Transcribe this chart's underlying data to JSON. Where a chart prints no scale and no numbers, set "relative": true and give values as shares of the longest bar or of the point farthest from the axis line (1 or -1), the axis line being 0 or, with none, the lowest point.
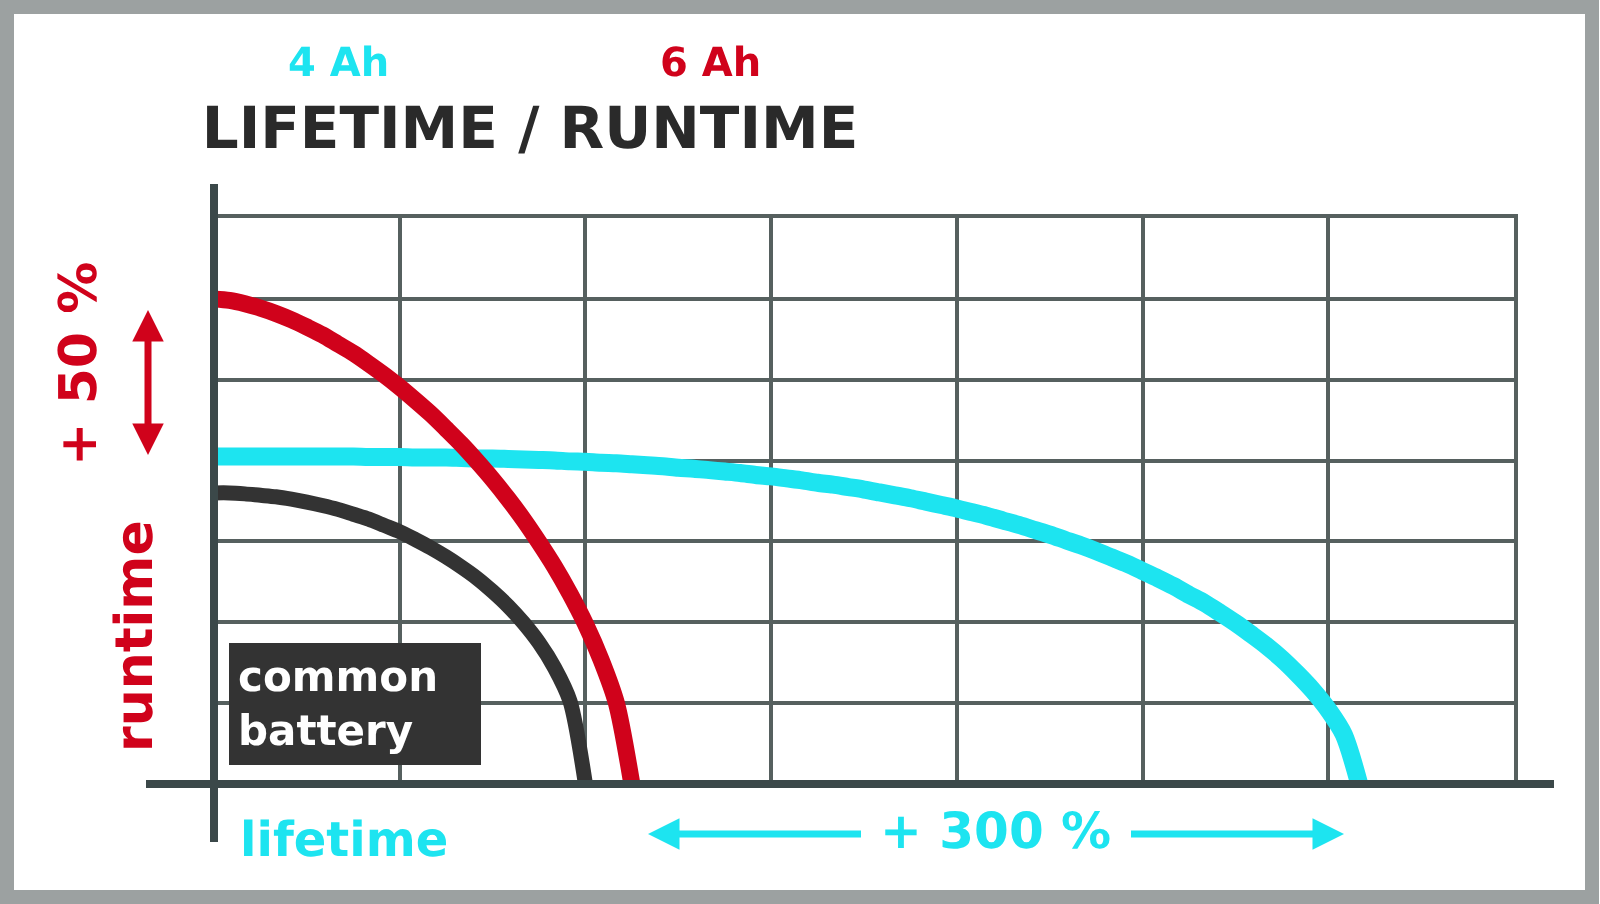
{
  "chart_data": {
    "type": "line",
    "title": "LIFETIME / RUNTIME",
    "xlabel": "lifetime",
    "ylabel": "runtime",
    "annotations": [
      "+ 50 %",
      "+ 300 %"
    ],
    "relative": true,
    "grid": true,
    "legend": "top left",
    "categories": [
      null,
      null,
      null,
      null,
      null,
      null,
      null,
      null,
      null,
      null,
      null,
      null,
      null,
      null,
      null,
      null,
      null,
      null,
      null,
      null,
      null,
      null,
      null,
      null,
      null,
      null,
      null,
      null,
      null,
      null,
      null,
      null,
      null,
      null,
      null,
      null,
      null,
      null,
      null,
      null,
      null,
      null,
      null,
      null,
      null,
      null,
      null,
      null,
      null,
      null,
      null,
      null,
      null,
      null,
      null,
      null,
      null,
      null,
      null,
      null,
      null,
      null,
      null,
      null,
      null,
      null,
      null,
      null,
      null,
      null,
      null,
      null,
      null,
      null,
      null,
      null,
      null,
      null,
      null,
      null,
      null,
      null,
      null,
      null,
      null
    ],
    "series": [
      {
        "name": "4 Ah",
        "color": "#1de4f0",
        "values": [
          0.675,
          0.675,
          0.675,
          0.675,
          0.675,
          0.675,
          0.675,
          0.675,
          0.675,
          0.675,
          0.674,
          0.674,
          0.674,
          0.673,
          0.673,
          0.673,
          0.672,
          0.671,
          0.671,
          0.67,
          0.669,
          0.668,
          0.667,
          0.665,
          0.664,
          0.662,
          0.661,
          0.659,
          0.657,
          0.655,
          0.652,
          0.65,
          0.647,
          0.644,
          0.641,
          0.637,
          0.634,
          0.63,
          0.626,
          0.621,
          0.617,
          0.612,
          0.607,
          0.601,
          0.595,
          0.589,
          0.582,
          0.575,
          0.568,
          0.56,
          0.552,
          0.543,
          0.534,
          0.524,
          0.514,
          0.503,
          0.492,
          0.48,
          0.467,
          0.454,
          0.439,
          0.424,
          0.408,
          0.39,
          0.373,
          0.353,
          0.332,
          0.309,
          0.285,
          0.258,
          0.227,
          0.193,
          0.153,
          0.102,
          0,
          null,
          null,
          null,
          null,
          null,
          null,
          null,
          null,
          null,
          null
        ]
      },
      {
        "name": "6 Ah",
        "color": "#d0021b",
        "values": [
          1,
          0.997,
          0.99,
          0.981,
          0.97,
          0.957,
          0.942,
          0.926,
          0.907,
          0.888,
          0.866,
          0.843,
          0.818,
          0.791,
          0.763,
          0.732,
          0.7,
          0.665,
          0.628,
          0.588,
          0.545,
          0.498,
          0.448,
          0.392,
          0.33,
          0.257,
          0.167,
          0,
          null,
          null,
          null,
          null,
          null,
          null,
          null,
          null,
          null,
          null,
          null,
          null,
          null,
          null,
          null,
          null,
          null,
          null,
          null,
          null,
          null,
          null,
          null,
          null,
          null,
          null,
          null,
          null,
          null,
          null,
          null,
          null,
          null,
          null,
          null,
          null,
          null,
          null,
          null,
          null,
          null,
          null,
          null,
          null,
          null,
          null,
          null,
          null,
          null,
          null,
          null,
          null,
          null,
          null,
          null,
          null,
          null
        ]
      },
      {
        "name": "common battery",
        "color": "#333333",
        "values": [
          0.6,
          0.6,
          0.598,
          0.595,
          0.592,
          0.587,
          0.581,
          0.574,
          0.566,
          0.556,
          0.546,
          0.533,
          0.52,
          0.504,
          0.487,
          0.468,
          0.447,
          0.424,
          0.397,
          0.367,
          0.332,
          0.291,
          0.24,
          0.171,
          0,
          null,
          null,
          null,
          null,
          null,
          null,
          null,
          null,
          null,
          null,
          null,
          null,
          null,
          null,
          null,
          null,
          null,
          null,
          null,
          null,
          null,
          null,
          null,
          null,
          null,
          null,
          null,
          null,
          null,
          null,
          null,
          null,
          null,
          null,
          null,
          null,
          null,
          null,
          null,
          null,
          null,
          null,
          null,
          null,
          null,
          null,
          null,
          null,
          null,
          null,
          null,
          null,
          null,
          null,
          null,
          null,
          null,
          null,
          null,
          null
        ]
      }
    ]
  }
}
